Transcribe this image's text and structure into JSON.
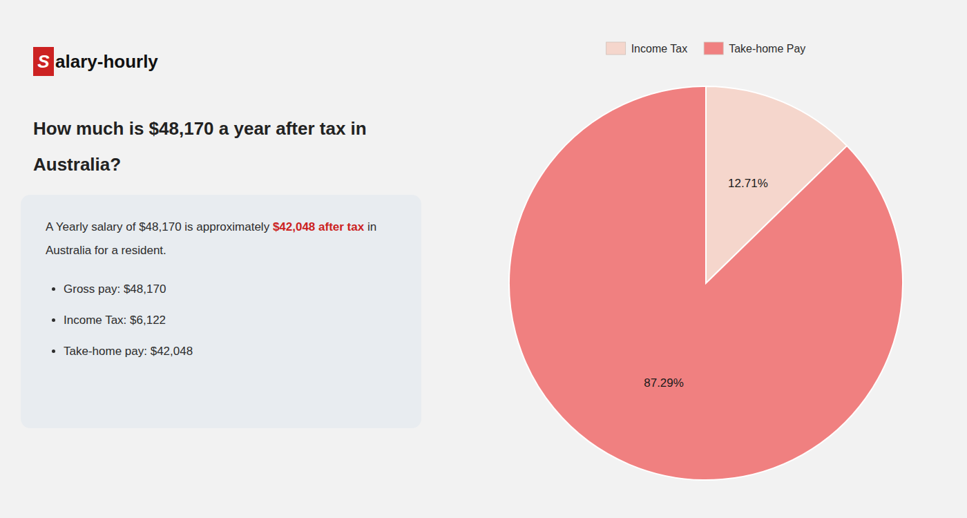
{
  "chart_data": {
    "type": "pie",
    "title": "How much is $48,170 a year after tax in Australia?",
    "logo": {
      "mark": "S",
      "text": "alary-hourly",
      "color": "#cc2222"
    },
    "summary": [
      [
        {
          "text": "A Yearly salary of $48,170 is approximately "
        },
        {
          "text": "$42,048 after tax",
          "color": "#cc2222"
        },
        {
          "text": " in"
        }
      ],
      [
        {
          "text": "Australia for a resident."
        }
      ]
    ],
    "notes": [
      "Gross pay: $48,170",
      "Income Tax: $6,122",
      "Take-home pay: $42,048"
    ],
    "categories": [
      "Income Tax",
      "Take-home Pay"
    ],
    "values": [
      12.71,
      87.29
    ],
    "value_labels": [
      "12.71%",
      "87.29%"
    ],
    "colors": [
      "#f5d6cc",
      "#f08080"
    ],
    "data_labels": true,
    "legend": "top"
  }
}
